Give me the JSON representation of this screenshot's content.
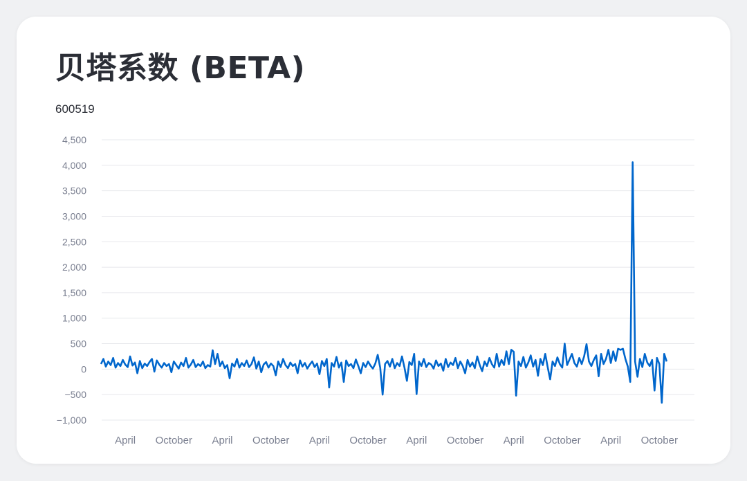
{
  "card": {
    "title": "贝塔系数 (BETA)",
    "subtitle": "600519"
  },
  "chart_data": {
    "type": "line",
    "ylim": [
      -1000,
      4500
    ],
    "xlim": [
      0,
      70
    ],
    "grid": true,
    "yticks": [
      {
        "value": 4500,
        "label": "4,500"
      },
      {
        "value": 4000,
        "label": "4,000"
      },
      {
        "value": 3500,
        "label": "3,500"
      },
      {
        "value": 3000,
        "label": "3,000"
      },
      {
        "value": 2500,
        "label": "2,500"
      },
      {
        "value": 2000,
        "label": "2,000"
      },
      {
        "value": 1500,
        "label": "1,500"
      },
      {
        "value": 1000,
        "label": "1,000"
      },
      {
        "value": 500,
        "label": "500"
      },
      {
        "value": 0,
        "label": "0"
      },
      {
        "value": -500,
        "label": "−500"
      },
      {
        "value": -1000,
        "label": "−1,000"
      }
    ],
    "xticks": [
      {
        "value": 3,
        "label": "April"
      },
      {
        "value": 9,
        "label": "October"
      },
      {
        "value": 15,
        "label": "April"
      },
      {
        "value": 21,
        "label": "October"
      },
      {
        "value": 27,
        "label": "April"
      },
      {
        "value": 33,
        "label": "October"
      },
      {
        "value": 39,
        "label": "April"
      },
      {
        "value": 45,
        "label": "October"
      },
      {
        "value": 51,
        "label": "April"
      },
      {
        "value": 57,
        "label": "October"
      },
      {
        "value": 63,
        "label": "April"
      },
      {
        "value": 69,
        "label": "October"
      }
    ],
    "series": [
      {
        "color": "#0066cc",
        "points": [
          [
            0.0,
            100
          ],
          [
            0.3,
            200
          ],
          [
            0.6,
            50
          ],
          [
            0.9,
            150
          ],
          [
            1.2,
            80
          ],
          [
            1.5,
            220
          ],
          [
            1.8,
            30
          ],
          [
            2.1,
            120
          ],
          [
            2.4,
            60
          ],
          [
            2.7,
            180
          ],
          [
            3.0,
            90
          ],
          [
            3.3,
            40
          ],
          [
            3.6,
            250
          ],
          [
            3.9,
            70
          ],
          [
            4.2,
            130
          ],
          [
            4.5,
            -80
          ],
          [
            4.8,
            160
          ],
          [
            5.1,
            20
          ],
          [
            5.4,
            110
          ],
          [
            5.7,
            60
          ],
          [
            6.0,
            140
          ],
          [
            6.3,
            200
          ],
          [
            6.6,
            -50
          ],
          [
            6.9,
            170
          ],
          [
            7.2,
            90
          ],
          [
            7.5,
            30
          ],
          [
            7.8,
            120
          ],
          [
            8.1,
            60
          ],
          [
            8.4,
            100
          ],
          [
            8.7,
            -60
          ],
          [
            9.0,
            150
          ],
          [
            9.3,
            80
          ],
          [
            9.6,
            10
          ],
          [
            9.9,
            130
          ],
          [
            10.2,
            60
          ],
          [
            10.5,
            220
          ],
          [
            10.8,
            30
          ],
          [
            11.1,
            90
          ],
          [
            11.4,
            180
          ],
          [
            11.7,
            40
          ],
          [
            12.0,
            100
          ],
          [
            12.3,
            60
          ],
          [
            12.6,
            150
          ],
          [
            12.9,
            20
          ],
          [
            13.2,
            80
          ],
          [
            13.5,
            50
          ],
          [
            13.8,
            370
          ],
          [
            14.1,
            100
          ],
          [
            14.4,
            300
          ],
          [
            14.7,
            60
          ],
          [
            15.0,
            150
          ],
          [
            15.3,
            20
          ],
          [
            15.6,
            80
          ],
          [
            15.9,
            -180
          ],
          [
            16.2,
            110
          ],
          [
            16.5,
            50
          ],
          [
            16.8,
            200
          ],
          [
            17.1,
            30
          ],
          [
            17.4,
            120
          ],
          [
            17.7,
            60
          ],
          [
            18.0,
            170
          ],
          [
            18.3,
            40
          ],
          [
            18.6,
            100
          ],
          [
            18.9,
            230
          ],
          [
            19.2,
            10
          ],
          [
            19.5,
            150
          ],
          [
            19.8,
            -60
          ],
          [
            20.1,
            90
          ],
          [
            20.4,
            140
          ],
          [
            20.7,
            30
          ],
          [
            21.0,
            110
          ],
          [
            21.3,
            60
          ],
          [
            21.6,
            -120
          ],
          [
            21.9,
            150
          ],
          [
            22.2,
            40
          ],
          [
            22.5,
            200
          ],
          [
            22.8,
            80
          ],
          [
            23.1,
            20
          ],
          [
            23.4,
            130
          ],
          [
            23.7,
            60
          ],
          [
            24.0,
            100
          ],
          [
            24.3,
            -80
          ],
          [
            24.6,
            170
          ],
          [
            24.9,
            50
          ],
          [
            25.2,
            120
          ],
          [
            25.5,
            10
          ],
          [
            25.8,
            90
          ],
          [
            26.1,
            150
          ],
          [
            26.4,
            40
          ],
          [
            26.7,
            110
          ],
          [
            27.0,
            -100
          ],
          [
            27.3,
            160
          ],
          [
            27.6,
            60
          ],
          [
            27.9,
            200
          ],
          [
            28.2,
            -360
          ],
          [
            28.5,
            120
          ],
          [
            28.8,
            50
          ],
          [
            29.1,
            240
          ],
          [
            29.4,
            30
          ],
          [
            29.7,
            130
          ],
          [
            30.0,
            -250
          ],
          [
            30.3,
            170
          ],
          [
            30.6,
            60
          ],
          [
            30.9,
            100
          ],
          [
            31.2,
            20
          ],
          [
            31.5,
            190
          ],
          [
            31.8,
            60
          ],
          [
            32.1,
            -80
          ],
          [
            32.4,
            120
          ],
          [
            32.7,
            40
          ],
          [
            33.0,
            150
          ],
          [
            33.3,
            70
          ],
          [
            33.6,
            10
          ],
          [
            33.9,
            110
          ],
          [
            34.2,
            280
          ],
          [
            34.5,
            30
          ],
          [
            34.8,
            -500
          ],
          [
            35.1,
            100
          ],
          [
            35.4,
            160
          ],
          [
            35.7,
            50
          ],
          [
            36.0,
            200
          ],
          [
            36.3,
            20
          ],
          [
            36.6,
            120
          ],
          [
            36.9,
            60
          ],
          [
            37.2,
            250
          ],
          [
            37.5,
            30
          ],
          [
            37.8,
            -230
          ],
          [
            38.1,
            140
          ],
          [
            38.4,
            80
          ],
          [
            38.7,
            300
          ],
          [
            39.0,
            -490
          ],
          [
            39.3,
            150
          ],
          [
            39.6,
            60
          ],
          [
            39.9,
            200
          ],
          [
            40.2,
            40
          ],
          [
            40.5,
            120
          ],
          [
            40.8,
            90
          ],
          [
            41.1,
            10
          ],
          [
            41.4,
            170
          ],
          [
            41.7,
            60
          ],
          [
            42.0,
            110
          ],
          [
            42.3,
            -30
          ],
          [
            42.6,
            200
          ],
          [
            42.9,
            40
          ],
          [
            43.2,
            130
          ],
          [
            43.5,
            80
          ],
          [
            43.8,
            220
          ],
          [
            44.1,
            20
          ],
          [
            44.4,
            150
          ],
          [
            44.7,
            60
          ],
          [
            45.0,
            -80
          ],
          [
            45.3,
            180
          ],
          [
            45.6,
            50
          ],
          [
            45.9,
            130
          ],
          [
            46.2,
            20
          ],
          [
            46.5,
            250
          ],
          [
            46.8,
            80
          ],
          [
            47.1,
            -40
          ],
          [
            47.4,
            150
          ],
          [
            47.7,
            60
          ],
          [
            48.0,
            220
          ],
          [
            48.3,
            100
          ],
          [
            48.6,
            30
          ],
          [
            48.9,
            300
          ],
          [
            49.2,
            50
          ],
          [
            49.5,
            180
          ],
          [
            49.8,
            80
          ],
          [
            50.1,
            350
          ],
          [
            50.4,
            100
          ],
          [
            50.7,
            380
          ],
          [
            51.0,
            340
          ],
          [
            51.3,
            -520
          ],
          [
            51.6,
            150
          ],
          [
            51.9,
            60
          ],
          [
            52.2,
            240
          ],
          [
            52.5,
            30
          ],
          [
            52.8,
            130
          ],
          [
            53.1,
            270
          ],
          [
            53.4,
            50
          ],
          [
            53.7,
            180
          ],
          [
            54.0,
            -130
          ],
          [
            54.3,
            200
          ],
          [
            54.6,
            80
          ],
          [
            54.9,
            300
          ],
          [
            55.2,
            40
          ],
          [
            55.5,
            -200
          ],
          [
            55.8,
            150
          ],
          [
            56.1,
            60
          ],
          [
            56.4,
            230
          ],
          [
            56.7,
            100
          ],
          [
            57.0,
            30
          ],
          [
            57.3,
            500
          ],
          [
            57.6,
            80
          ],
          [
            57.9,
            190
          ],
          [
            58.2,
            300
          ],
          [
            58.5,
            120
          ],
          [
            58.8,
            50
          ],
          [
            59.1,
            220
          ],
          [
            59.4,
            100
          ],
          [
            59.7,
            250
          ],
          [
            60.0,
            490
          ],
          [
            60.3,
            150
          ],
          [
            60.6,
            60
          ],
          [
            60.9,
            180
          ],
          [
            61.2,
            270
          ],
          [
            61.5,
            -140
          ],
          [
            61.8,
            300
          ],
          [
            62.1,
            100
          ],
          [
            62.4,
            200
          ],
          [
            62.7,
            380
          ],
          [
            63.0,
            120
          ],
          [
            63.3,
            350
          ],
          [
            63.6,
            160
          ],
          [
            63.9,
            400
          ],
          [
            64.2,
            380
          ],
          [
            64.5,
            400
          ],
          [
            64.8,
            200
          ],
          [
            65.1,
            50
          ],
          [
            65.4,
            -250
          ],
          [
            65.7,
            4060
          ],
          [
            66.0,
            150
          ],
          [
            66.3,
            -150
          ],
          [
            66.6,
            200
          ],
          [
            66.9,
            40
          ],
          [
            67.2,
            300
          ],
          [
            67.5,
            130
          ],
          [
            67.8,
            60
          ],
          [
            68.1,
            180
          ],
          [
            68.4,
            -420
          ],
          [
            68.7,
            220
          ],
          [
            69.0,
            100
          ],
          [
            69.3,
            -660
          ],
          [
            69.6,
            300
          ],
          [
            69.9,
            150
          ]
        ]
      }
    ]
  }
}
